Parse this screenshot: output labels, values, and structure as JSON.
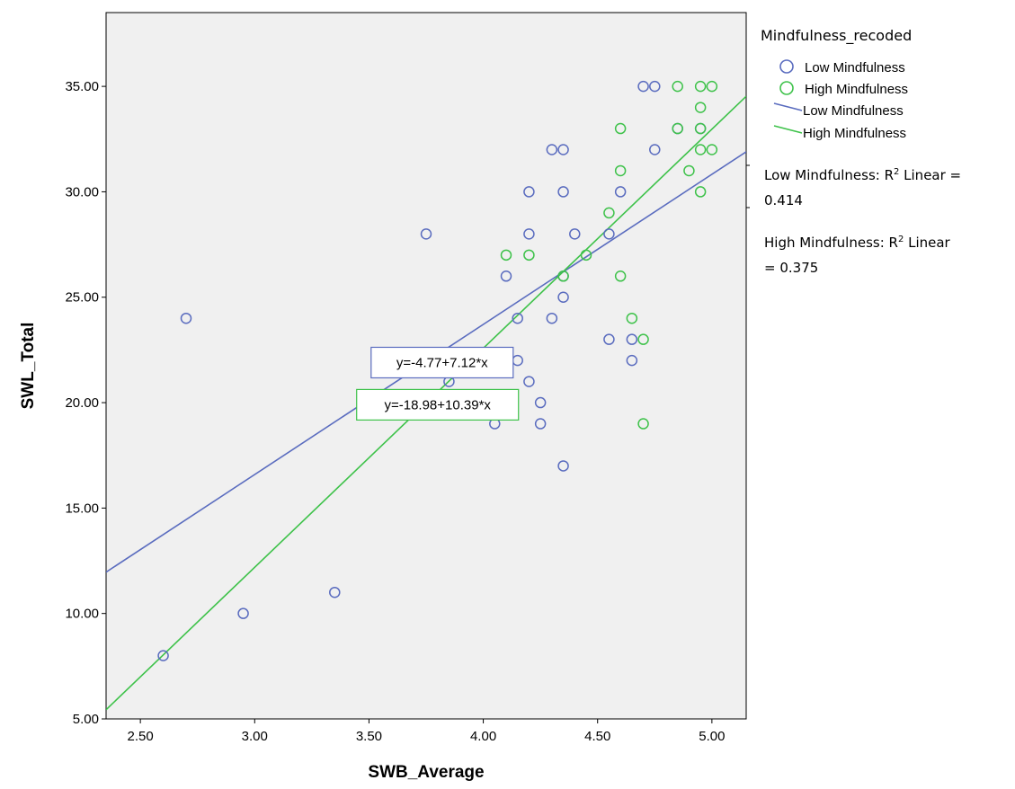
{
  "colors": {
    "plot_bg": "#f0f0f0",
    "low": "#5a6cbf",
    "high": "#3ec24a"
  },
  "chart_data": {
    "type": "scatter",
    "xlabel": "SWB_Average",
    "ylabel": "SWL_Total",
    "xlim": [
      2.35,
      5.15
    ],
    "ylim": [
      5,
      38.5
    ],
    "x_ticks": [
      2.5,
      3.0,
      3.5,
      4.0,
      4.5,
      5.0
    ],
    "x_tick_labels": [
      "2.50",
      "3.00",
      "3.50",
      "4.00",
      "4.50",
      "5.00"
    ],
    "y_ticks": [
      5,
      10,
      15,
      20,
      25,
      30,
      35
    ],
    "y_tick_labels": [
      "5.00",
      "10.00",
      "15.00",
      "20.00",
      "25.00",
      "30.00",
      "35.00"
    ],
    "legend_title": "Mindfulness_recoded",
    "legend_position": "right",
    "series": [
      {
        "name": "Low Mindfulness",
        "color": "#5a6cbf",
        "points": [
          [
            2.6,
            8
          ],
          [
            2.7,
            24
          ],
          [
            2.95,
            10
          ],
          [
            3.35,
            11
          ],
          [
            3.75,
            28
          ],
          [
            3.85,
            21
          ],
          [
            4.05,
            19
          ],
          [
            4.1,
            26
          ],
          [
            4.15,
            24
          ],
          [
            4.15,
            22
          ],
          [
            4.2,
            30
          ],
          [
            4.2,
            28
          ],
          [
            4.2,
            21
          ],
          [
            4.25,
            20
          ],
          [
            4.25,
            19
          ],
          [
            4.3,
            32
          ],
          [
            4.3,
            24
          ],
          [
            4.35,
            32
          ],
          [
            4.35,
            30
          ],
          [
            4.35,
            26
          ],
          [
            4.35,
            25
          ],
          [
            4.35,
            17
          ],
          [
            4.4,
            28
          ],
          [
            4.55,
            28
          ],
          [
            4.55,
            23
          ],
          [
            4.6,
            30
          ],
          [
            4.65,
            23
          ],
          [
            4.65,
            22
          ],
          [
            4.7,
            35
          ],
          [
            4.75,
            35
          ],
          [
            4.75,
            32
          ],
          [
            4.85,
            33
          ],
          [
            4.95,
            33
          ]
        ]
      },
      {
        "name": "High Mindfulness",
        "color": "#3ec24a",
        "points": [
          [
            4.1,
            27
          ],
          [
            4.2,
            27
          ],
          [
            4.35,
            26
          ],
          [
            4.45,
            27
          ],
          [
            4.55,
            29
          ],
          [
            4.6,
            33
          ],
          [
            4.6,
            31
          ],
          [
            4.6,
            26
          ],
          [
            4.65,
            24
          ],
          [
            4.7,
            23
          ],
          [
            4.7,
            19
          ],
          [
            4.85,
            35
          ],
          [
            4.85,
            33
          ],
          [
            4.9,
            31
          ],
          [
            4.95,
            35
          ],
          [
            4.95,
            34
          ],
          [
            4.95,
            33
          ],
          [
            4.95,
            32
          ],
          [
            4.95,
            30
          ],
          [
            5.0,
            35
          ],
          [
            5.0,
            32
          ]
        ]
      }
    ],
    "fit_lines": [
      {
        "name": "Low Mindfulness",
        "color": "#5a6cbf",
        "intercept": -4.77,
        "slope": 7.12,
        "equation_label": "y=-4.77+7.12*x",
        "r2_label": "Low Mindfulness: R",
        "r2_suffix": " Linear =",
        "r2_value": "0.414"
      },
      {
        "name": "High Mindfulness",
        "color": "#3ec24a",
        "intercept": -18.98,
        "slope": 10.39,
        "equation_label": "y=-18.98+10.39*x",
        "r2_label": "High Mindfulness: R",
        "r2_suffix": " Linear",
        "r2_value": "= 0.375"
      }
    ],
    "r2_superscript": "2"
  }
}
